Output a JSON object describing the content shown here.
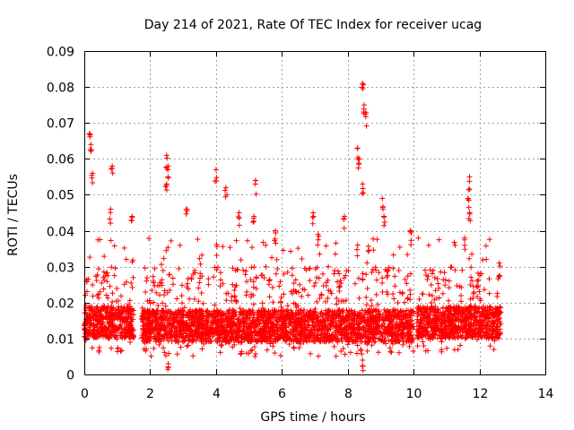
{
  "chart_data": {
    "type": "scatter",
    "title": "Day 214 of 2021, Rate Of TEC Index for receiver ucag",
    "xlabel": "GPS time / hours",
    "ylabel": "ROTI / TECUs",
    "xlim": [
      0,
      14
    ],
    "ylim": [
      0,
      0.09
    ],
    "grid": true,
    "x_ticks": [
      "0",
      "2",
      "4",
      "6",
      "8",
      "10",
      "12",
      "14"
    ],
    "x_tick_values": [
      0,
      2,
      4,
      6,
      8,
      10,
      12,
      14
    ],
    "y_ticks": [
      "0",
      "0.01",
      "0.02",
      "0.03",
      "0.04",
      "0.05",
      "0.06",
      "0.07",
      "0.08",
      "0.09"
    ],
    "y_tick_values": [
      0,
      0.01,
      0.02,
      0.03,
      0.04,
      0.05,
      0.06,
      0.07,
      0.08,
      0.09
    ],
    "marker": "+",
    "series_color": "#ff0000",
    "data_segments": [
      {
        "x_start": 0.0,
        "x_end": 1.5,
        "typical_min": 0.006,
        "typical_max": 0.03
      },
      {
        "x_start": 1.75,
        "x_end": 10.0,
        "typical_min": 0.005,
        "typical_max": 0.03
      },
      {
        "x_start": 10.1,
        "x_end": 12.65,
        "typical_min": 0.006,
        "typical_max": 0.03
      }
    ],
    "notable_points": [
      {
        "x": 0.15,
        "y": 0.067
      },
      {
        "x": 0.2,
        "y": 0.064
      },
      {
        "x": 0.25,
        "y": 0.056
      },
      {
        "x": 0.85,
        "y": 0.058
      },
      {
        "x": 0.8,
        "y": 0.046
      },
      {
        "x": 1.45,
        "y": 0.044
      },
      {
        "x": 2.5,
        "y": 0.061
      },
      {
        "x": 2.55,
        "y": 0.058
      },
      {
        "x": 2.5,
        "y": 0.053
      },
      {
        "x": 3.1,
        "y": 0.046
      },
      {
        "x": 4.0,
        "y": 0.057
      },
      {
        "x": 4.3,
        "y": 0.052
      },
      {
        "x": 4.7,
        "y": 0.045
      },
      {
        "x": 5.2,
        "y": 0.054
      },
      {
        "x": 5.15,
        "y": 0.044
      },
      {
        "x": 5.8,
        "y": 0.04
      },
      {
        "x": 6.95,
        "y": 0.045
      },
      {
        "x": 7.1,
        "y": 0.039
      },
      {
        "x": 7.9,
        "y": 0.044
      },
      {
        "x": 8.3,
        "y": 0.063
      },
      {
        "x": 8.35,
        "y": 0.06
      },
      {
        "x": 8.45,
        "y": 0.081
      },
      {
        "x": 8.5,
        "y": 0.075
      },
      {
        "x": 8.55,
        "y": 0.073
      },
      {
        "x": 8.45,
        "y": 0.053
      },
      {
        "x": 9.05,
        "y": 0.049
      },
      {
        "x": 9.1,
        "y": 0.044
      },
      {
        "x": 9.9,
        "y": 0.04
      },
      {
        "x": 11.55,
        "y": 0.038
      },
      {
        "x": 11.7,
        "y": 0.055
      },
      {
        "x": 11.65,
        "y": 0.049
      },
      {
        "x": 11.7,
        "y": 0.045
      },
      {
        "x": 12.6,
        "y": 0.031
      },
      {
        "x": 8.45,
        "y": 0.004
      },
      {
        "x": 2.55,
        "y": 0.003
      }
    ]
  }
}
